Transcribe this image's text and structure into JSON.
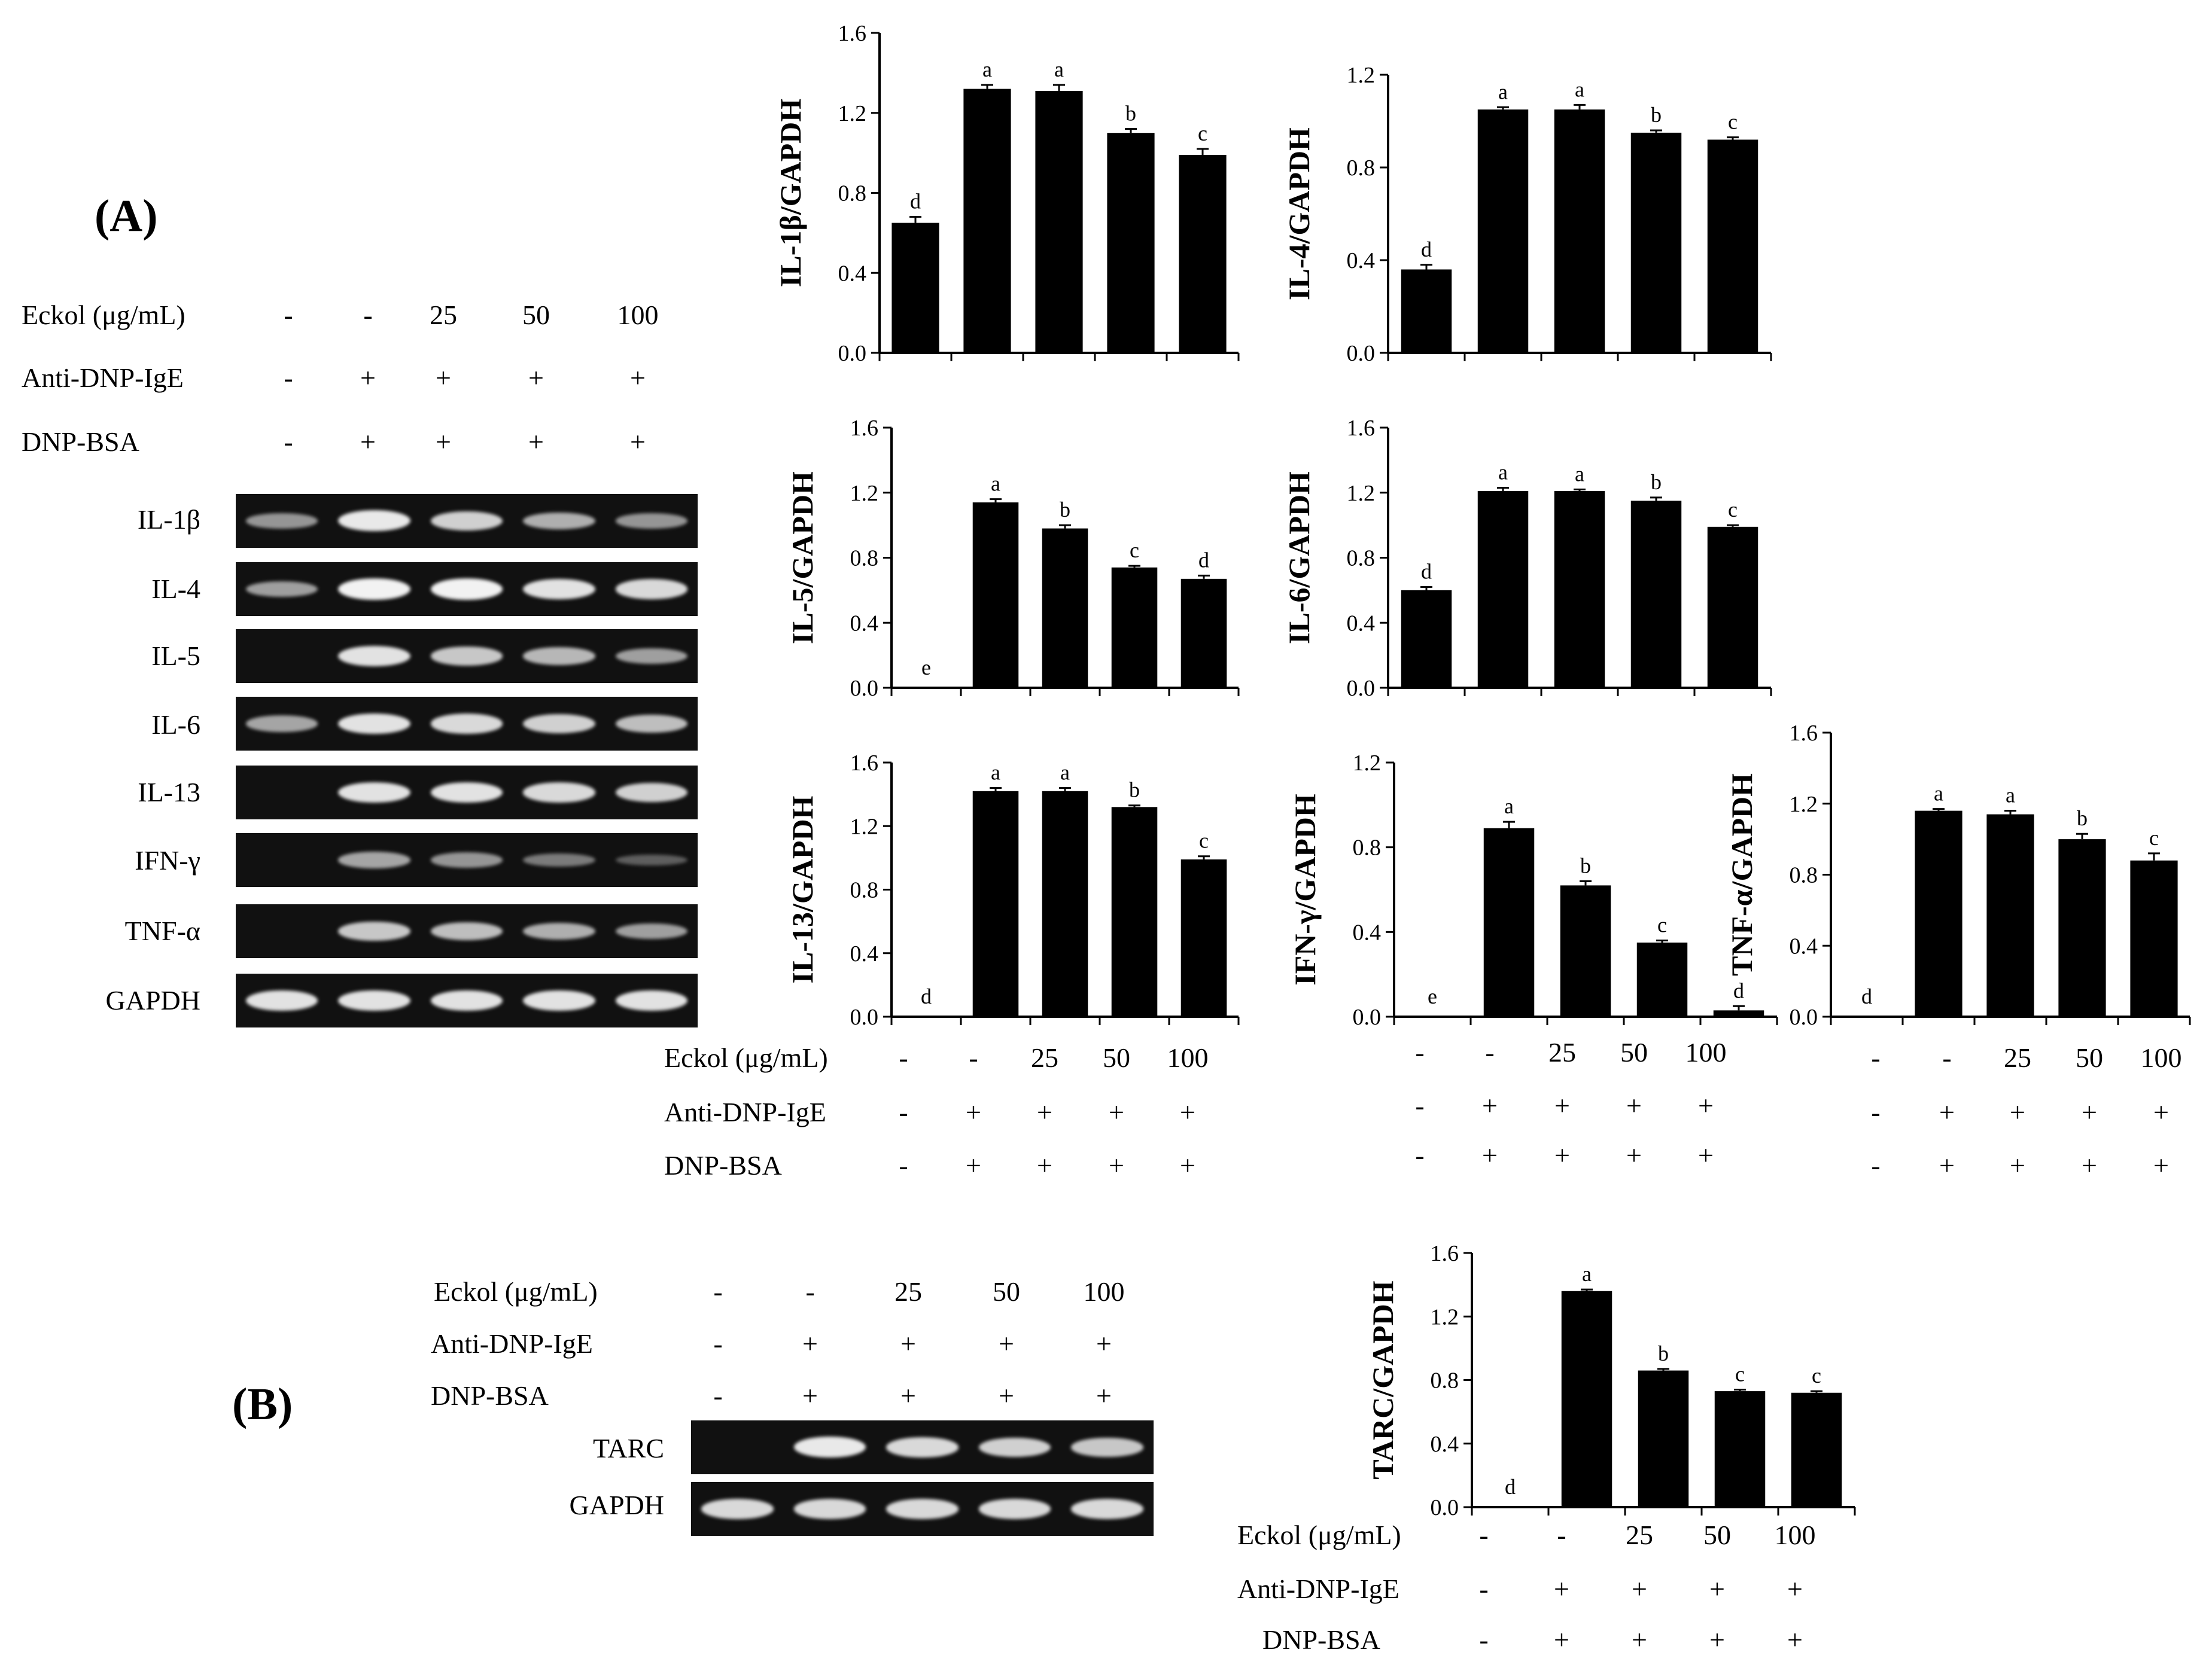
{
  "panels": {
    "a": "(A)",
    "b": "(B)"
  },
  "conditions": [
    {
      "label": "Eckol (μg/mL)",
      "values": [
        "-",
        "-",
        "25",
        "50",
        "100"
      ]
    },
    {
      "label": "Anti-DNP-IgE",
      "values": [
        "-",
        "+",
        "+",
        "+",
        "+"
      ]
    },
    {
      "label": "DNP-BSA",
      "values": [
        "-",
        "+",
        "+",
        "+",
        "+"
      ]
    }
  ],
  "gel_a": {
    "lanes": 5,
    "rows": [
      {
        "label": "IL-1β",
        "intensity": [
          0.45,
          0.95,
          0.8,
          0.6,
          0.45
        ]
      },
      {
        "label": "IL-4",
        "intensity": [
          0.5,
          1.0,
          1.0,
          0.9,
          0.85
        ]
      },
      {
        "label": "IL-5",
        "intensity": [
          0.0,
          0.9,
          0.75,
          0.65,
          0.5
        ]
      },
      {
        "label": "IL-6",
        "intensity": [
          0.55,
          0.9,
          0.85,
          0.8,
          0.7
        ]
      },
      {
        "label": "IL-13",
        "intensity": [
          0.0,
          0.9,
          0.9,
          0.85,
          0.8
        ]
      },
      {
        "label": "IFN-γ",
        "intensity": [
          0.0,
          0.55,
          0.45,
          0.3,
          0.12
        ]
      },
      {
        "label": "TNF-α",
        "intensity": [
          0.0,
          0.75,
          0.7,
          0.6,
          0.5
        ]
      },
      {
        "label": "GAPDH",
        "intensity": [
          0.9,
          0.9,
          0.9,
          0.9,
          0.9
        ]
      }
    ]
  },
  "gel_b": {
    "lanes": 5,
    "rows": [
      {
        "label": "TARC",
        "intensity": [
          0.0,
          0.95,
          0.85,
          0.8,
          0.75
        ]
      },
      {
        "label": "GAPDH",
        "intensity": [
          0.85,
          0.85,
          0.85,
          0.85,
          0.85
        ]
      }
    ]
  },
  "colors": {
    "bar": "#000000",
    "gel_bg": "#111111",
    "band": "#f2f2f2"
  },
  "chart_data": [
    {
      "type": "bar",
      "ylabel": "IL-1β/GAPDH",
      "ylim": [
        0,
        1.6
      ],
      "yticks": [
        "0.0",
        "0.4",
        "0.8",
        "1.2",
        "1.6"
      ],
      "values": [
        0.65,
        1.32,
        1.31,
        1.1,
        0.99
      ],
      "errors": [
        0.03,
        0.02,
        0.03,
        0.02,
        0.03
      ],
      "letters": [
        "d",
        "a",
        "a",
        "b",
        "c"
      ]
    },
    {
      "type": "bar",
      "ylabel": "IL-4/GAPDH",
      "ylim": [
        0,
        1.2
      ],
      "yticks": [
        "0.0",
        "0.4",
        "0.8",
        "1.2"
      ],
      "values": [
        0.36,
        1.05,
        1.05,
        0.95,
        0.92
      ],
      "errors": [
        0.02,
        0.01,
        0.02,
        0.01,
        0.01
      ],
      "letters": [
        "d",
        "a",
        "a",
        "b",
        "c"
      ]
    },
    {
      "type": "bar",
      "ylabel": "IL-5/GAPDH",
      "ylim": [
        0,
        1.6
      ],
      "yticks": [
        "0.0",
        "0.4",
        "0.8",
        "1.2",
        "1.6"
      ],
      "values": [
        0.0,
        1.14,
        0.98,
        0.74,
        0.67
      ],
      "errors": [
        0.0,
        0.02,
        0.02,
        0.01,
        0.02
      ],
      "letters": [
        "e",
        "a",
        "b",
        "c",
        "d"
      ]
    },
    {
      "type": "bar",
      "ylabel": "IL-6/GAPDH",
      "ylim": [
        0,
        1.6
      ],
      "yticks": [
        "0.0",
        "0.4",
        "0.8",
        "1.2",
        "1.6"
      ],
      "values": [
        0.6,
        1.21,
        1.21,
        1.15,
        0.99
      ],
      "errors": [
        0.02,
        0.02,
        0.01,
        0.02,
        0.01
      ],
      "letters": [
        "d",
        "a",
        "a",
        "b",
        "c"
      ]
    },
    {
      "type": "bar",
      "ylabel": "IL-13/GAPDH",
      "ylim": [
        0,
        1.6
      ],
      "yticks": [
        "0.0",
        "0.4",
        "0.8",
        "1.2",
        "1.6"
      ],
      "values": [
        0.0,
        1.42,
        1.42,
        1.32,
        0.99
      ],
      "errors": [
        0.0,
        0.02,
        0.02,
        0.01,
        0.02
      ],
      "letters": [
        "d",
        "a",
        "a",
        "b",
        "c"
      ]
    },
    {
      "type": "bar",
      "ylabel": "IFN-γ/GAPDH",
      "ylim": [
        0,
        1.2
      ],
      "yticks": [
        "0.0",
        "0.4",
        "0.8",
        "1.2"
      ],
      "values": [
        0.0,
        0.89,
        0.62,
        0.35,
        0.03
      ],
      "errors": [
        0.0,
        0.03,
        0.02,
        0.01,
        0.02
      ],
      "letters": [
        "e",
        "a",
        "b",
        "c",
        "d"
      ]
    },
    {
      "type": "bar",
      "ylabel": "TNF-α/GAPDH",
      "ylim": [
        0,
        1.6
      ],
      "yticks": [
        "0.0",
        "0.4",
        "0.8",
        "1.2",
        "1.6"
      ],
      "values": [
        0.0,
        1.16,
        1.14,
        1.0,
        0.88
      ],
      "errors": [
        0.0,
        0.01,
        0.02,
        0.03,
        0.04
      ],
      "letters": [
        "d",
        "a",
        "a",
        "b",
        "c"
      ]
    },
    {
      "type": "bar",
      "ylabel": "TARC/GAPDH",
      "ylim": [
        0,
        1.6
      ],
      "yticks": [
        "0.0",
        "0.4",
        "0.8",
        "1.2",
        "1.6"
      ],
      "values": [
        0.0,
        1.36,
        0.86,
        0.73,
        0.72
      ],
      "errors": [
        0.0,
        0.01,
        0.01,
        0.01,
        0.01
      ],
      "letters": [
        "d",
        "a",
        "b",
        "c",
        "c"
      ]
    }
  ]
}
